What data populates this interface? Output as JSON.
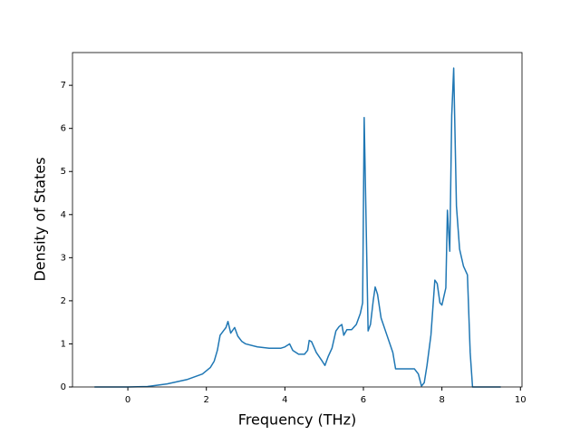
{
  "chart_data": {
    "type": "line",
    "x_label": "Frequency (THz)",
    "y_label": "Density of States",
    "xlim": [
      -1.41,
      10.04
    ],
    "ylim": [
      0,
      7.76
    ],
    "xticks": [
      0,
      2,
      4,
      6,
      8,
      10
    ],
    "yticks": [
      0,
      1,
      2,
      3,
      4,
      5,
      6,
      7
    ],
    "grid": false,
    "series": [
      {
        "color": "#1f77b4",
        "x": [
          -0.85,
          0,
          0.5,
          1,
          1.5,
          1.9,
          2.1,
          2.2,
          2.28,
          2.35,
          2.45,
          2.5,
          2.55,
          2.62,
          2.72,
          2.8,
          2.9,
          3.0,
          3.3,
          3.6,
          3.9,
          4.0,
          4.12,
          4.2,
          4.35,
          4.5,
          4.58,
          4.62,
          4.68,
          4.8,
          4.95,
          5.02,
          5.1,
          5.2,
          5.3,
          5.38,
          5.45,
          5.5,
          5.58,
          5.7,
          5.82,
          5.92,
          5.98,
          6.02,
          6.12,
          6.18,
          6.25,
          6.3,
          6.36,
          6.45,
          6.6,
          6.75,
          6.82,
          7.0,
          7.3,
          7.4,
          7.48,
          7.55,
          7.62,
          7.72,
          7.82,
          7.88,
          7.95,
          8.0,
          8.1,
          8.14,
          8.2,
          8.25,
          8.3,
          8.37,
          8.45,
          8.55,
          8.65,
          8.72,
          8.78,
          9.5
        ],
        "values": [
          0,
          0,
          0.01,
          0.07,
          0.17,
          0.3,
          0.45,
          0.6,
          0.85,
          1.2,
          1.32,
          1.38,
          1.52,
          1.25,
          1.38,
          1.18,
          1.06,
          1.0,
          0.93,
          0.9,
          0.9,
          0.93,
          1.0,
          0.85,
          0.76,
          0.76,
          0.85,
          1.08,
          1.05,
          0.8,
          0.6,
          0.5,
          0.7,
          0.9,
          1.3,
          1.4,
          1.45,
          1.2,
          1.33,
          1.33,
          1.45,
          1.7,
          1.95,
          6.25,
          1.3,
          1.45,
          2.0,
          2.32,
          2.15,
          1.6,
          1.2,
          0.8,
          0.42,
          0.42,
          0.42,
          0.3,
          0.02,
          0.1,
          0.5,
          1.2,
          2.48,
          2.4,
          1.95,
          1.9,
          2.3,
          4.1,
          3.15,
          6.3,
          7.4,
          4.2,
          3.2,
          2.8,
          2.6,
          0.8,
          0,
          0
        ]
      }
    ]
  }
}
